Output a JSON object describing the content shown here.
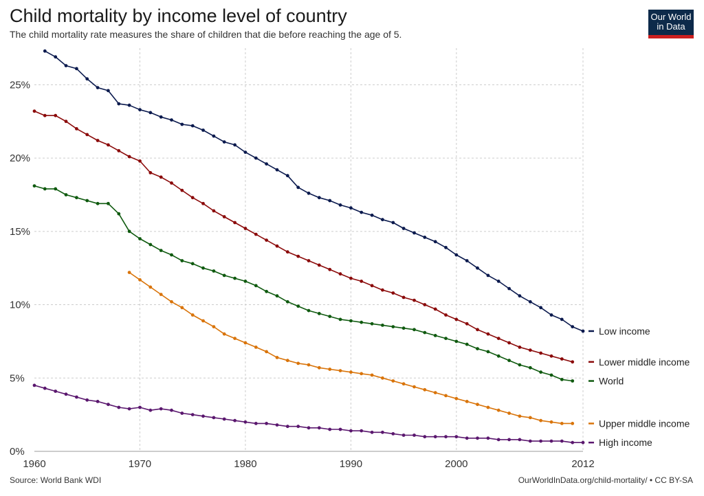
{
  "header": {
    "title": "Child mortality by income level of country",
    "subtitle": "The child mortality rate measures the share of children that die before reaching the age of 5."
  },
  "logo": {
    "line1": "Our World",
    "line2": "in Data"
  },
  "footer": {
    "source": "Source: World Bank WDI",
    "credit": "OurWorldInData.org/child-mortality/ • CC BY-SA"
  },
  "chart_data": {
    "type": "line",
    "title": "Child mortality by income level of country",
    "xlabel": "",
    "ylabel": "",
    "xlim": [
      1960,
      2012
    ],
    "ylim": [
      0,
      27.5
    ],
    "grid": true,
    "legend": "right",
    "x_ticks": [
      1960,
      1970,
      1980,
      1990,
      2000,
      2012
    ],
    "x_tick_labels": [
      "1960",
      "1970",
      "1980",
      "1990",
      "2000",
      "2012"
    ],
    "y_ticks": [
      0,
      5,
      10,
      15,
      20,
      25
    ],
    "y_tick_labels": [
      "0%",
      "5%",
      "10%",
      "15%",
      "20%",
      "25%"
    ],
    "series": [
      {
        "name": "Low income",
        "color": "#0b1a4e",
        "start": 1961,
        "values": [
          27.3,
          26.9,
          26.3,
          26.1,
          25.4,
          24.8,
          24.6,
          23.7,
          23.6,
          23.3,
          23.1,
          22.8,
          22.6,
          22.3,
          22.2,
          21.9,
          21.5,
          21.1,
          20.9,
          20.4,
          20.0,
          19.6,
          19.2,
          18.8,
          18.0,
          17.6,
          17.3,
          17.1,
          16.8,
          16.6,
          16.3,
          16.1,
          15.8,
          15.6,
          15.2,
          14.9,
          14.6,
          14.3,
          13.9,
          13.4,
          13.0,
          12.5,
          12.0,
          11.6,
          11.1,
          10.6,
          10.2,
          9.8,
          9.3,
          9.0,
          8.5,
          8.2
        ]
      },
      {
        "name": "Lower middle income",
        "color": "#8b0a0a",
        "start": 1960,
        "values": [
          23.2,
          22.9,
          22.9,
          22.5,
          22.0,
          21.6,
          21.2,
          20.9,
          20.5,
          20.1,
          19.8,
          19.0,
          18.7,
          18.3,
          17.8,
          17.3,
          16.9,
          16.4,
          16.0,
          15.6,
          15.2,
          14.8,
          14.4,
          14.0,
          13.6,
          13.3,
          13.0,
          12.7,
          12.4,
          12.1,
          11.8,
          11.6,
          11.3,
          11.0,
          10.8,
          10.5,
          10.3,
          10.0,
          9.7,
          9.3,
          9.0,
          8.7,
          8.3,
          8.0,
          7.7,
          7.4,
          7.1,
          6.9,
          6.7,
          6.5,
          6.3,
          6.1
        ]
      },
      {
        "name": "World",
        "color": "#0f5a0f",
        "start": 1960,
        "values": [
          18.1,
          17.9,
          17.9,
          17.5,
          17.3,
          17.1,
          16.9,
          16.9,
          16.2,
          15.0,
          14.5,
          14.1,
          13.7,
          13.4,
          13.0,
          12.8,
          12.5,
          12.3,
          12.0,
          11.8,
          11.6,
          11.3,
          10.9,
          10.6,
          10.2,
          9.9,
          9.6,
          9.4,
          9.2,
          9.0,
          8.9,
          8.8,
          8.7,
          8.6,
          8.5,
          8.4,
          8.3,
          8.1,
          7.9,
          7.7,
          7.5,
          7.3,
          7.0,
          6.8,
          6.5,
          6.2,
          5.9,
          5.7,
          5.4,
          5.2,
          4.9,
          4.8
        ]
      },
      {
        "name": "Upper middle income",
        "color": "#d9740a",
        "start": 1969,
        "values": [
          12.2,
          11.7,
          11.2,
          10.7,
          10.2,
          9.8,
          9.3,
          8.9,
          8.5,
          8.0,
          7.7,
          7.4,
          7.1,
          6.8,
          6.4,
          6.2,
          6.0,
          5.9,
          5.7,
          5.6,
          5.5,
          5.4,
          5.3,
          5.2,
          5.0,
          4.8,
          4.6,
          4.4,
          4.2,
          4.0,
          3.8,
          3.6,
          3.4,
          3.2,
          3.0,
          2.8,
          2.6,
          2.4,
          2.3,
          2.1,
          2.0,
          1.9,
          1.9
        ]
      },
      {
        "name": "High income",
        "color": "#5a176e",
        "start": 1960,
        "values": [
          4.5,
          4.3,
          4.1,
          3.9,
          3.7,
          3.5,
          3.4,
          3.2,
          3.0,
          2.9,
          3.0,
          2.8,
          2.9,
          2.8,
          2.6,
          2.5,
          2.4,
          2.3,
          2.2,
          2.1,
          2.0,
          1.9,
          1.9,
          1.8,
          1.7,
          1.7,
          1.6,
          1.6,
          1.5,
          1.5,
          1.4,
          1.4,
          1.3,
          1.3,
          1.2,
          1.1,
          1.1,
          1.0,
          1.0,
          1.0,
          1.0,
          0.9,
          0.9,
          0.9,
          0.8,
          0.8,
          0.8,
          0.7,
          0.7,
          0.7,
          0.7,
          0.6,
          0.6
        ]
      }
    ]
  }
}
